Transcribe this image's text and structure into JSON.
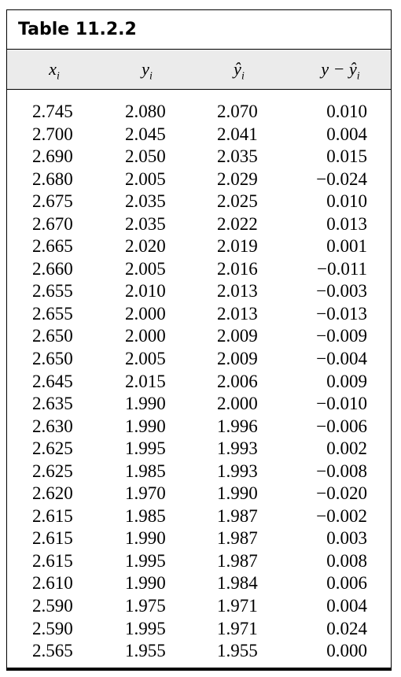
{
  "title": "Table 11.2.2",
  "columns": [
    "x",
    "y",
    "ŷ",
    "y − ŷ"
  ],
  "rows": [
    [
      "2.745",
      "2.080",
      "2.070",
      "0.010"
    ],
    [
      "2.700",
      "2.045",
      "2.041",
      "0.004"
    ],
    [
      "2.690",
      "2.050",
      "2.035",
      "0.015"
    ],
    [
      "2.680",
      "2.005",
      "2.029",
      "−0.024"
    ],
    [
      "2.675",
      "2.035",
      "2.025",
      "0.010"
    ],
    [
      "2.670",
      "2.035",
      "2.022",
      "0.013"
    ],
    [
      "2.665",
      "2.020",
      "2.019",
      "0.001"
    ],
    [
      "2.660",
      "2.005",
      "2.016",
      "−0.011"
    ],
    [
      "2.655",
      "2.010",
      "2.013",
      "−0.003"
    ],
    [
      "2.655",
      "2.000",
      "2.013",
      "−0.013"
    ],
    [
      "2.650",
      "2.000",
      "2.009",
      "−0.009"
    ],
    [
      "2.650",
      "2.005",
      "2.009",
      "−0.004"
    ],
    [
      "2.645",
      "2.015",
      "2.006",
      "0.009"
    ],
    [
      "2.635",
      "1.990",
      "2.000",
      "−0.010"
    ],
    [
      "2.630",
      "1.990",
      "1.996",
      "−0.006"
    ],
    [
      "2.625",
      "1.995",
      "1.993",
      "0.002"
    ],
    [
      "2.625",
      "1.985",
      "1.993",
      "−0.008"
    ],
    [
      "2.620",
      "1.970",
      "1.990",
      "−0.020"
    ],
    [
      "2.615",
      "1.985",
      "1.987",
      "−0.002"
    ],
    [
      "2.615",
      "1.990",
      "1.987",
      "0.003"
    ],
    [
      "2.615",
      "1.995",
      "1.987",
      "0.008"
    ],
    [
      "2.610",
      "1.990",
      "1.984",
      "0.006"
    ],
    [
      "2.590",
      "1.975",
      "1.971",
      "0.004"
    ],
    [
      "2.590",
      "1.995",
      "1.971",
      "0.024"
    ],
    [
      "2.565",
      "1.955",
      "1.955",
      "0.000"
    ]
  ]
}
